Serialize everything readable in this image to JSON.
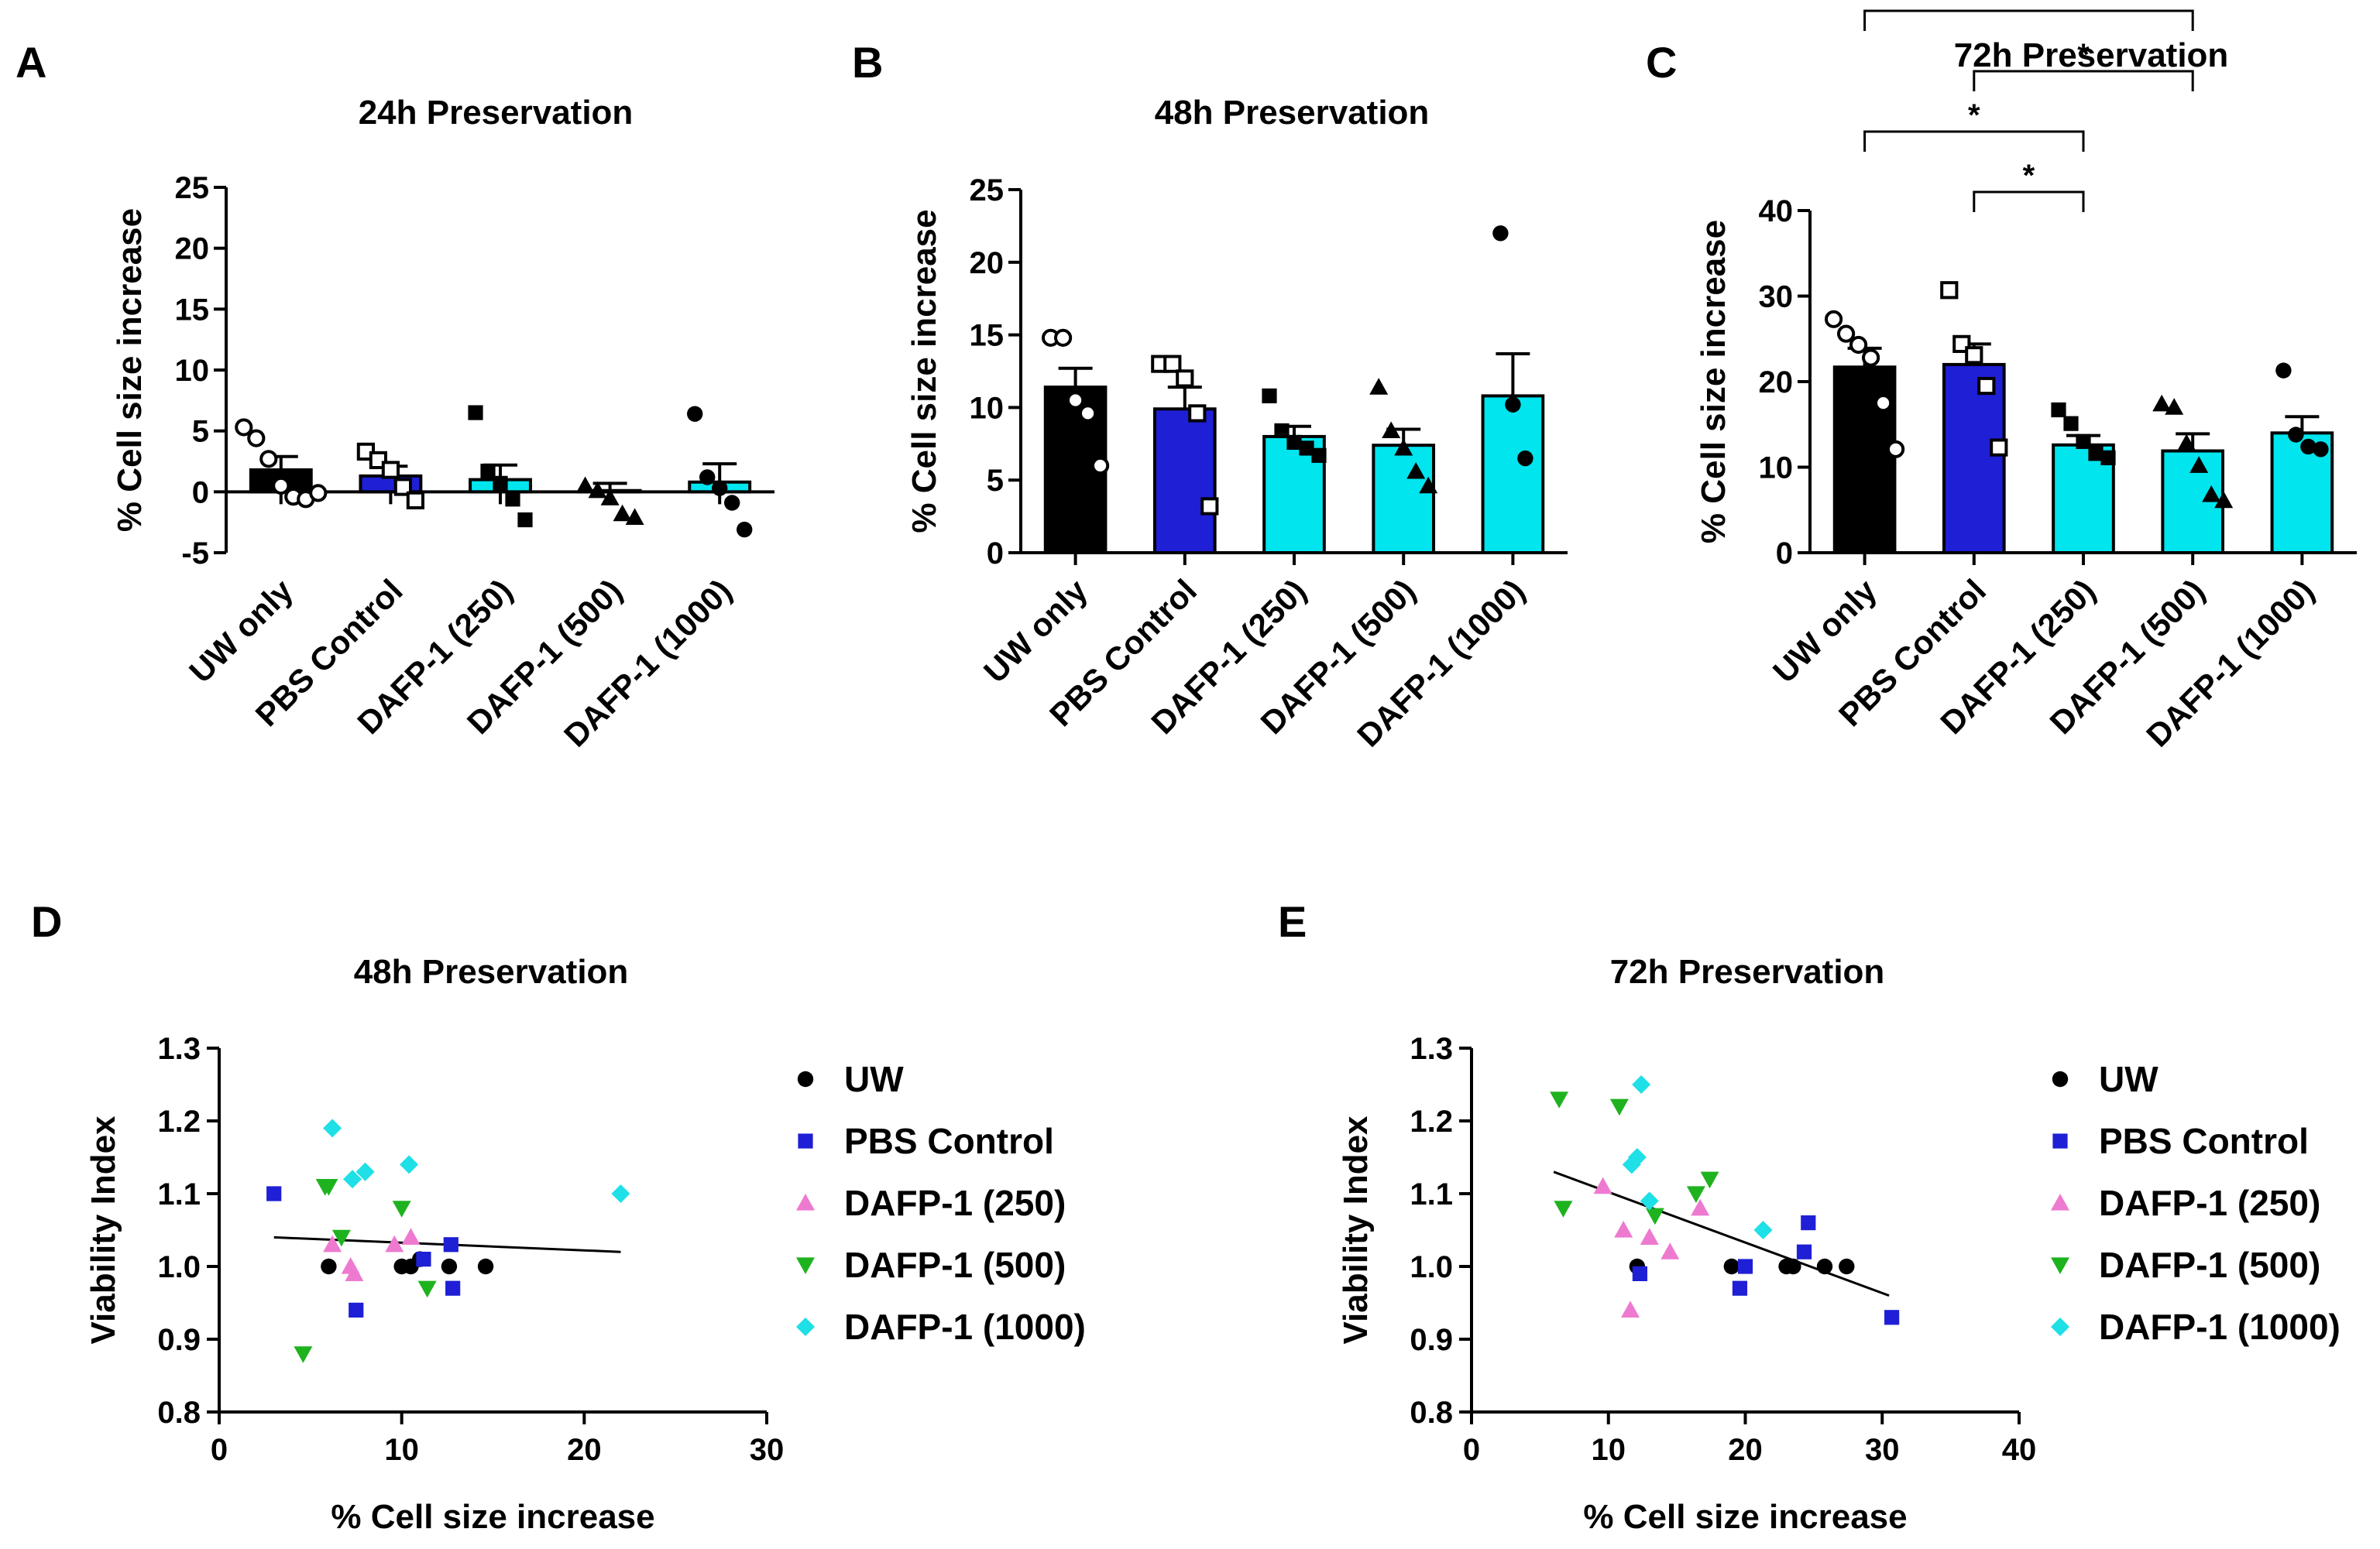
{
  "chart_data": [
    {
      "panel": "A",
      "type": "bar",
      "title": "24h Preservation",
      "ylabel": "% Cell size increase",
      "ylim": [
        -5,
        25
      ],
      "yticks": [
        -5,
        0,
        5,
        10,
        15,
        20,
        25
      ],
      "categories": [
        "UW only",
        "PBS Control",
        "DAFP-1 (250)",
        "DAFP-1 (500)",
        "DAFP-1 (1000)"
      ],
      "colors": [
        "#000000",
        "#1f1fd6",
        "#00e5ee",
        "#00e5ee",
        "#00e5ee"
      ],
      "values": [
        1.8,
        1.3,
        1.0,
        0.1,
        0.8
      ],
      "errors": [
        1.1,
        0.8,
        1.2,
        0.6,
        1.5
      ],
      "points": [
        [
          5.3,
          4.4,
          2.7,
          0.5,
          -0.4,
          -0.6,
          -0.1
        ],
        [
          3.3,
          2.6,
          1.8,
          0.4,
          -0.7
        ],
        [
          6.5,
          1.7,
          0.7,
          -0.6,
          -2.3
        ],
        [
          0.5,
          0.1,
          -0.5,
          -1.8,
          -2.1
        ],
        [
          6.4,
          1.2,
          0.3,
          -0.9,
          -3.1
        ]
      ],
      "markers": [
        "circle-open",
        "square-open",
        "square",
        "triangle",
        "circle"
      ]
    },
    {
      "panel": "B",
      "type": "bar",
      "title": "48h Preservation",
      "ylabel": "% Cell size increase",
      "ylim": [
        0,
        25
      ],
      "yticks": [
        0,
        5,
        10,
        15,
        20,
        25
      ],
      "categories": [
        "UW only",
        "PBS Control",
        "DAFP-1 (250)",
        "DAFP-1 (500)",
        "DAFP-1 (1000)"
      ],
      "colors": [
        "#000000",
        "#1f1fd6",
        "#00e5ee",
        "#00e5ee",
        "#00e5ee"
      ],
      "values": [
        11.4,
        9.9,
        8.0,
        7.4,
        10.8
      ],
      "errors": [
        1.3,
        1.5,
        0.7,
        1.1,
        2.9
      ],
      "points": [
        [
          14.8,
          14.8,
          10.5,
          9.6,
          6.0
        ],
        [
          13.0,
          13.0,
          12.0,
          9.6,
          3.2
        ],
        [
          10.8,
          8.4,
          7.6,
          7.2,
          6.7
        ],
        [
          11.4,
          8.4,
          7.2,
          5.6,
          4.6
        ],
        [
          22.0,
          10.2,
          6.5
        ]
      ],
      "markers": [
        "circle-open",
        "square-open",
        "square",
        "triangle",
        "circle"
      ]
    },
    {
      "panel": "C",
      "type": "bar",
      "title": "72h Preservation",
      "ylabel": "% Cell size increase",
      "ylim": [
        0,
        40
      ],
      "yticks": [
        0,
        10,
        20,
        30,
        40
      ],
      "categories": [
        "UW only",
        "PBS Control",
        "DAFP-1 (250)",
        "DAFP-1 (500)",
        "DAFP-1 (1000)"
      ],
      "colors": [
        "#000000",
        "#1f1fd6",
        "#00e5ee",
        "#00e5ee",
        "#00e5ee"
      ],
      "values": [
        21.7,
        22.0,
        12.6,
        11.9,
        14.0
      ],
      "errors": [
        2.2,
        2.4,
        1.1,
        2.0,
        1.9
      ],
      "points": [
        [
          27.3,
          25.6,
          24.3,
          22.8,
          17.5,
          12.1
        ],
        [
          30.7,
          24.4,
          23.1,
          19.5,
          12.3
        ],
        [
          16.7,
          15.1,
          13.0,
          11.6,
          11.1
        ],
        [
          17.4,
          17.0,
          12.8,
          10.2,
          6.8,
          6.1
        ],
        [
          21.3,
          13.8,
          12.4,
          12.1
        ]
      ],
      "markers": [
        "circle-open",
        "square-open",
        "square",
        "triangle",
        "circle"
      ],
      "significance": [
        {
          "from": 0,
          "to": 3,
          "label": "*",
          "level": 4
        },
        {
          "from": 1,
          "to": 3,
          "label": "*",
          "level": 3
        },
        {
          "from": 0,
          "to": 2,
          "label": "*",
          "level": 2
        },
        {
          "from": 1,
          "to": 2,
          "label": "*",
          "level": 1
        }
      ]
    },
    {
      "panel": "D",
      "type": "scatter",
      "title": "48h Preservation",
      "xlabel": "% Cell size increase",
      "ylabel": "Viability Index",
      "xlim": [
        0,
        30
      ],
      "xticks": [
        0,
        10,
        20,
        30
      ],
      "ylim": [
        0.8,
        1.3
      ],
      "yticks": [
        "0.8",
        "0.9",
        "1.0",
        "1.1",
        "1.2",
        "1.3"
      ],
      "legend_position": "right",
      "series": [
        {
          "name": "UW",
          "marker": "circle",
          "color": "#000000",
          "x": [
            6.0,
            10.0,
            10.5,
            11.0,
            12.6,
            14.6
          ],
          "y": [
            1.0,
            1.0,
            1.0,
            1.01,
            1.0,
            1.0
          ]
        },
        {
          "name": "PBS Control",
          "marker": "square",
          "color": "#1f1fd6",
          "x": [
            3.0,
            7.5,
            11.2,
            12.7,
            12.8
          ],
          "y": [
            1.1,
            0.94,
            1.01,
            1.03,
            0.97
          ]
        },
        {
          "name": "DAFP-1 (250)",
          "marker": "triangle",
          "color": "#ee7ad0",
          "x": [
            6.2,
            7.2,
            7.4,
            9.6,
            10.5
          ],
          "y": [
            1.03,
            1.0,
            0.99,
            1.03,
            1.04
          ]
        },
        {
          "name": "DAFP-1 (500)",
          "marker": "triangle-down",
          "color": "#1fb21f",
          "x": [
            4.6,
            5.8,
            6.0,
            6.7,
            10.0,
            11.4
          ],
          "y": [
            0.88,
            1.11,
            1.11,
            1.04,
            1.08,
            0.97
          ]
        },
        {
          "name": "DAFP-1 (1000)",
          "marker": "diamond",
          "color": "#1ee0e6",
          "x": [
            6.2,
            7.3,
            8.0,
            10.4,
            22.0
          ],
          "y": [
            1.19,
            1.12,
            1.13,
            1.14,
            1.1
          ]
        }
      ],
      "trendline": {
        "x": [
          3,
          22
        ],
        "y": [
          1.04,
          1.02
        ]
      }
    },
    {
      "panel": "E",
      "type": "scatter",
      "title": "72h Preservation",
      "xlabel": "% Cell size increase",
      "ylabel": "Viability Index",
      "xlim": [
        0,
        40
      ],
      "xticks": [
        0,
        10,
        20,
        30,
        40
      ],
      "ylim": [
        0.8,
        1.3
      ],
      "yticks": [
        "0.8",
        "0.9",
        "1.0",
        "1.1",
        "1.2",
        "1.3"
      ],
      "legend_position": "right",
      "series": [
        {
          "name": "UW",
          "marker": "circle",
          "color": "#000000",
          "x": [
            12.1,
            19.0,
            23.0,
            23.5,
            25.8,
            27.4
          ],
          "y": [
            1.0,
            1.0,
            1.0,
            1.0,
            1.0,
            1.0
          ]
        },
        {
          "name": "PBS Control",
          "marker": "square",
          "color": "#1f1fd6",
          "x": [
            12.3,
            19.6,
            20.0,
            24.3,
            24.6,
            30.7
          ],
          "y": [
            0.99,
            0.97,
            1.0,
            1.02,
            1.06,
            0.93
          ]
        },
        {
          "name": "DAFP-1 (250)",
          "marker": "triangle",
          "color": "#ee7ad0",
          "x": [
            9.6,
            11.1,
            11.6,
            13.0,
            14.5,
            16.7
          ],
          "y": [
            1.11,
            1.05,
            0.94,
            1.04,
            1.02,
            1.08
          ]
        },
        {
          "name": "DAFP-1 (500)",
          "marker": "triangle-down",
          "color": "#1fb21f",
          "x": [
            6.4,
            6.7,
            10.8,
            13.4,
            16.4,
            17.4
          ],
          "y": [
            1.23,
            1.08,
            1.22,
            1.07,
            1.1,
            1.12
          ]
        },
        {
          "name": "DAFP-1 (1000)",
          "marker": "diamond",
          "color": "#1ee0e6",
          "x": [
            11.7,
            12.1,
            12.4,
            13.0,
            21.3
          ],
          "y": [
            1.14,
            1.15,
            1.25,
            1.09,
            1.05
          ]
        }
      ],
      "trendline": {
        "x": [
          6,
          30.5
        ],
        "y": [
          1.13,
          0.96
        ]
      }
    }
  ]
}
